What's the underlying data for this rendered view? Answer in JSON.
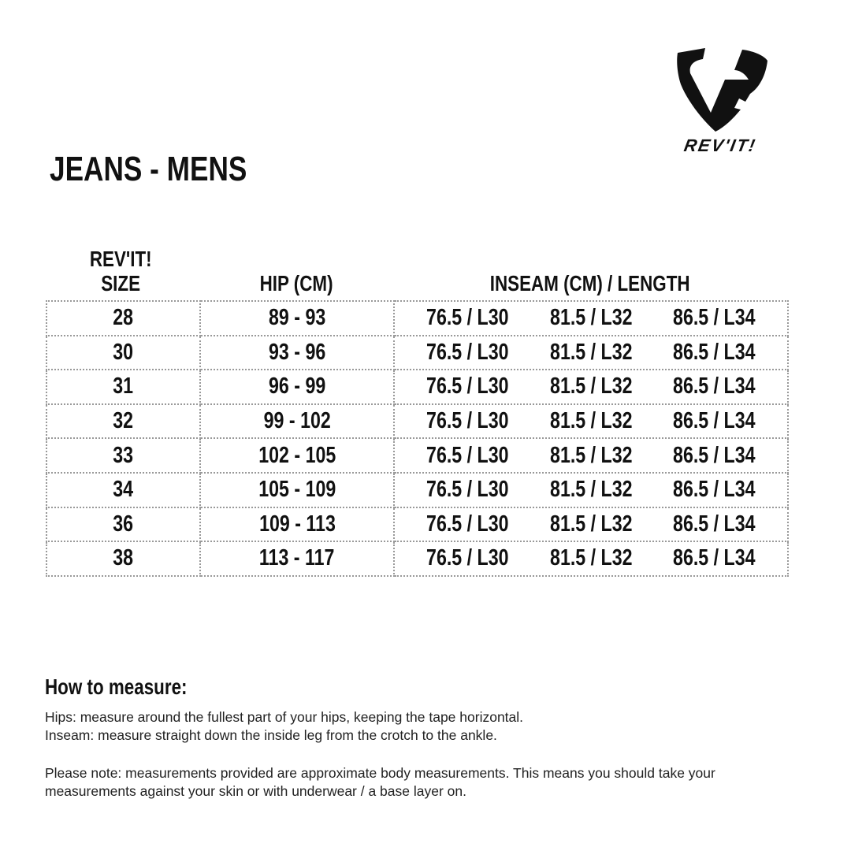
{
  "brand": {
    "logo_text": "REV'IT!"
  },
  "title": "JEANS - MENS",
  "table": {
    "headers": {
      "size_line1": "REV'IT!",
      "size_line2": "SIZE",
      "hip": "HIP (CM)",
      "inseam": "INSEAM (CM) / LENGTH"
    },
    "rows": [
      {
        "size": "28",
        "hip": "89 - 93",
        "inseam": [
          "76.5 / L30",
          "81.5 / L32",
          "86.5 / L34"
        ]
      },
      {
        "size": "30",
        "hip": "93 - 96",
        "inseam": [
          "76.5 / L30",
          "81.5 / L32",
          "86.5 / L34"
        ]
      },
      {
        "size": "31",
        "hip": "96 - 99",
        "inseam": [
          "76.5 / L30",
          "81.5 / L32",
          "86.5 / L34"
        ]
      },
      {
        "size": "32",
        "hip": "99 - 102",
        "inseam": [
          "76.5 / L30",
          "81.5 / L32",
          "86.5 / L34"
        ]
      },
      {
        "size": "33",
        "hip": "102 - 105",
        "inseam": [
          "76.5 / L30",
          "81.5 / L32",
          "86.5 / L34"
        ]
      },
      {
        "size": "34",
        "hip": "105 - 109",
        "inseam": [
          "76.5 / L30",
          "81.5 / L32",
          "86.5 / L34"
        ]
      },
      {
        "size": "36",
        "hip": "109 - 113",
        "inseam": [
          "76.5 / L30",
          "81.5 / L32",
          "86.5 / L34"
        ]
      },
      {
        "size": "38",
        "hip": "113 - 117",
        "inseam": [
          "76.5 / L30",
          "81.5 / L32",
          "86.5 / L34"
        ]
      }
    ]
  },
  "how_to": {
    "heading": "How to measure:",
    "hips": "Hips: measure around the fullest part of your hips, keeping the tape horizontal.",
    "inseam": "Inseam: measure straight down the inside leg from the crotch to the ankle.",
    "note_line1": "Please note: measurements provided are approximate body measurements. This means you should take your",
    "note_line2": "measurements against your skin or with underwear / a base layer on."
  }
}
